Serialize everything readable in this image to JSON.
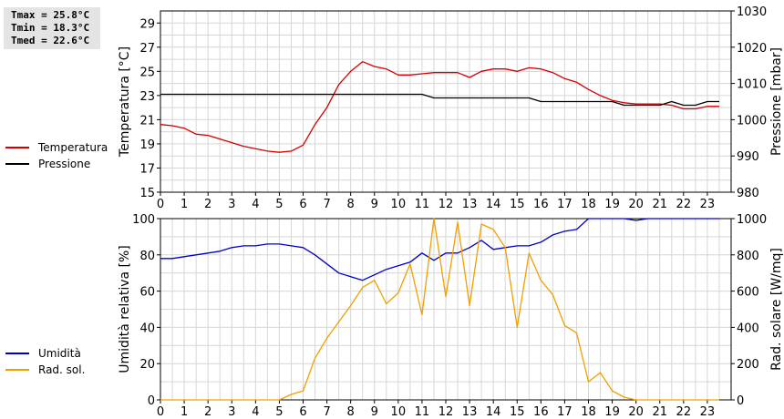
{
  "stats": {
    "tmax": "Tmax = 25.8°C",
    "tmin": "Tmin = 18.3°C",
    "tmed": "Tmed = 22.6°C"
  },
  "legend_top": [
    {
      "label": "Temperatura",
      "color": "#d40000"
    },
    {
      "label": "Pressione",
      "color": "#000000"
    }
  ],
  "legend_bottom": [
    {
      "label": "Umidità",
      "color": "#0000c8"
    },
    {
      "label": "Rad. sol.",
      "color": "#f0a000"
    }
  ],
  "chart_data": [
    {
      "type": "line",
      "xlim": [
        0,
        24
      ],
      "x_ticks": [
        "0",
        "1",
        "2",
        "3",
        "4",
        "5",
        "6",
        "7",
        "8",
        "9",
        "10",
        "11",
        "12",
        "13",
        "14",
        "15",
        "16",
        "17",
        "18",
        "19",
        "20",
        "21",
        "22",
        "23"
      ],
      "ylabel": "Temperatura [°C]",
      "ylim": [
        15,
        30
      ],
      "y_ticks": [
        "15",
        "17",
        "19",
        "21",
        "23",
        "25",
        "27",
        "29"
      ],
      "y2label": "Pressione [mbar]",
      "y2lim": [
        980,
        1030
      ],
      "y2_ticks": [
        "980",
        "990",
        "1000",
        "1010",
        "1020",
        "1030"
      ],
      "grid": true,
      "series": [
        {
          "name": "Temperatura",
          "axis": "left",
          "color": "#d40000",
          "x": [
            0,
            0.5,
            1,
            1.5,
            2,
            2.5,
            3,
            3.5,
            4,
            4.5,
            5,
            5.5,
            6,
            6.5,
            7,
            7.5,
            8,
            8.5,
            9,
            9.5,
            10,
            10.5,
            11,
            11.5,
            12,
            12.5,
            13,
            13.5,
            14,
            14.5,
            15,
            15.5,
            16,
            16.5,
            17,
            17.5,
            18,
            18.5,
            19,
            19.5,
            20,
            20.5,
            21,
            21.5,
            22,
            22.5,
            23,
            23.5
          ],
          "y": [
            20.6,
            20.5,
            20.3,
            19.8,
            19.7,
            19.4,
            19.1,
            18.8,
            18.6,
            18.4,
            18.3,
            18.4,
            18.9,
            20.6,
            22.0,
            23.9,
            25.0,
            25.8,
            25.4,
            25.2,
            24.7,
            24.7,
            24.8,
            24.9,
            24.9,
            24.9,
            24.5,
            25.0,
            25.2,
            25.2,
            25.0,
            25.3,
            25.2,
            24.9,
            24.4,
            24.1,
            23.5,
            23.0,
            22.6,
            22.4,
            22.3,
            22.3,
            22.3,
            22.2,
            21.9,
            21.9,
            22.1,
            22.1
          ]
        },
        {
          "name": "Pressione",
          "axis": "right",
          "color": "#000000",
          "x": [
            0,
            11,
            11.5,
            15.5,
            16,
            19,
            19.5,
            21,
            21.5,
            22,
            22.5,
            23,
            23.5
          ],
          "y": [
            1007,
            1007,
            1006,
            1006,
            1005,
            1005,
            1004,
            1004,
            1005,
            1004,
            1004,
            1005,
            1005
          ]
        }
      ]
    },
    {
      "type": "line",
      "xlim": [
        0,
        24
      ],
      "x_ticks": [
        "0",
        "1",
        "2",
        "3",
        "4",
        "5",
        "6",
        "7",
        "8",
        "9",
        "10",
        "11",
        "12",
        "13",
        "14",
        "15",
        "16",
        "17",
        "18",
        "19",
        "20",
        "21",
        "22",
        "23"
      ],
      "ylabel": "Umidità relativa [%]",
      "ylim": [
        0,
        100
      ],
      "y_ticks": [
        "0",
        "20",
        "40",
        "60",
        "80",
        "100"
      ],
      "y2label": "Rad. solare [W/mq]",
      "y2lim": [
        0,
        1000
      ],
      "y2_ticks": [
        "0",
        "200",
        "400",
        "600",
        "800",
        "1000"
      ],
      "grid": true,
      "series": [
        {
          "name": "Umidità",
          "axis": "left",
          "color": "#0000c8",
          "x": [
            0,
            0.5,
            1,
            1.5,
            2,
            2.5,
            3,
            3.5,
            4,
            4.5,
            5,
            5.5,
            6,
            6.5,
            7,
            7.5,
            8,
            8.5,
            9,
            9.5,
            10,
            10.5,
            11,
            11.5,
            12,
            12.5,
            13,
            13.5,
            14,
            14.5,
            15,
            15.5,
            16,
            16.5,
            17,
            17.5,
            18,
            18.5,
            19,
            19.5,
            20,
            20.5,
            21,
            21.5,
            22,
            22.5,
            23,
            23.5
          ],
          "y": [
            78,
            78,
            79,
            80,
            81,
            82,
            84,
            85,
            85,
            86,
            86,
            85,
            84,
            80,
            75,
            70,
            68,
            66,
            69,
            72,
            74,
            76,
            81,
            77,
            81,
            81,
            84,
            88,
            83,
            84,
            85,
            85,
            87,
            91,
            93,
            94,
            100,
            100,
            100,
            100,
            99,
            100,
            100,
            100,
            100,
            100,
            100,
            100
          ]
        },
        {
          "name": "Rad. sol.",
          "axis": "right",
          "color": "#f0a000",
          "x": [
            0,
            0.5,
            1,
            1.5,
            2,
            2.5,
            3,
            3.5,
            4,
            4.5,
            5,
            5.5,
            6,
            6.5,
            7,
            7.5,
            8,
            8.5,
            9,
            9.5,
            10,
            10.5,
            11,
            11.5,
            12,
            12.5,
            13,
            13.5,
            14,
            14.5,
            15,
            15.5,
            16,
            16.5,
            17,
            17.5,
            18,
            18.5,
            19,
            19.5,
            20,
            20.5,
            21,
            21.5,
            22,
            22.5,
            23,
            23.5
          ],
          "y": [
            0,
            0,
            0,
            0,
            0,
            0,
            0,
            0,
            0,
            0,
            0,
            30,
            50,
            230,
            340,
            430,
            520,
            620,
            660,
            530,
            590,
            750,
            470,
            1000,
            570,
            980,
            520,
            970,
            940,
            840,
            400,
            810,
            660,
            580,
            410,
            370,
            100,
            150,
            50,
            15,
            0,
            0,
            0,
            0,
            0,
            0,
            0,
            0
          ]
        }
      ]
    }
  ]
}
